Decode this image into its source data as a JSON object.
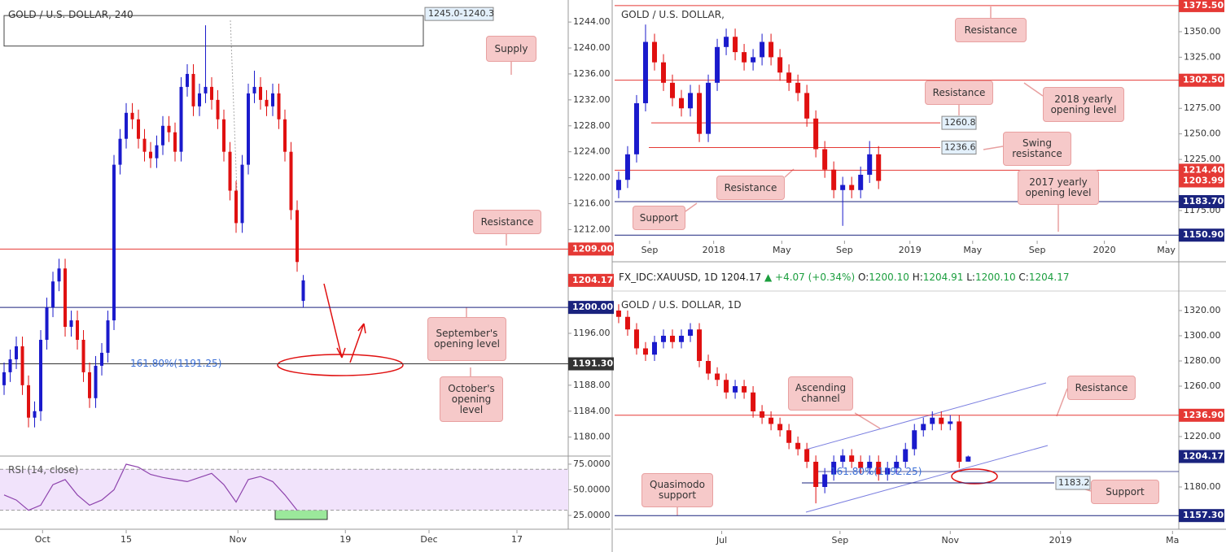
{
  "panels": [
    {
      "type": "candlestick",
      "title": "GOLD / U.S. DOLLAR, 240",
      "up_color": "#1a1acc",
      "down_color": "#e01010",
      "xlim": [
        -0.67,
        92.4
      ],
      "xticks": [
        {
          "value": 6.3,
          "label": "Oct"
        },
        {
          "value": 20,
          "label": "15"
        },
        {
          "value": 38.3,
          "label": "Nov"
        },
        {
          "value": 55.9,
          "label": "19"
        },
        {
          "value": 69.6,
          "label": "Dec"
        },
        {
          "value": 84,
          "label": "17"
        }
      ],
      "ylim": [
        1177.2,
        1247.4
      ],
      "yticks": [
        {
          "value": 1244,
          "label": "1244.00"
        },
        {
          "value": 1240,
          "label": "1240.00"
        },
        {
          "value": 1236,
          "label": "1236.00"
        },
        {
          "value": 1232,
          "label": "1232.00"
        },
        {
          "value": 1228,
          "label": "1228.00"
        },
        {
          "value": 1224,
          "label": "1224.00"
        },
        {
          "value": 1220,
          "label": "1220.00"
        },
        {
          "value": 1216,
          "label": "1216.00"
        },
        {
          "value": 1212,
          "label": "1212.00"
        },
        {
          "value": 1196,
          "label": "1196.00"
        },
        {
          "value": 1188,
          "label": "1188.00"
        },
        {
          "value": 1184,
          "label": "1184.00"
        },
        {
          "value": 1180,
          "label": "1180.00"
        }
      ],
      "candles": [
        [
          1188,
          1191.5,
          1186.5,
          1190
        ],
        [
          1190,
          1193.5,
          1188.5,
          1192
        ],
        [
          1192,
          1195.5,
          1190.5,
          1194
        ],
        [
          1194,
          1195.5,
          1186.5,
          1188
        ],
        [
          1188,
          1189.5,
          1181.5,
          1183
        ],
        [
          1183,
          1185.5,
          1181.5,
          1184
        ],
        [
          1184,
          1196.5,
          1182.5,
          1195
        ],
        [
          1195,
          1201.5,
          1193.5,
          1200
        ],
        [
          1200,
          1205.5,
          1198.5,
          1204
        ],
        [
          1204,
          1207.5,
          1202.5,
          1206
        ],
        [
          1206,
          1207.5,
          1195.5,
          1197
        ],
        [
          1197,
          1199.5,
          1195.5,
          1198
        ],
        [
          1198,
          1199.5,
          1193.5,
          1195
        ],
        [
          1195,
          1196.5,
          1188.5,
          1190
        ],
        [
          1190,
          1191.5,
          1184.5,
          1186
        ],
        [
          1186,
          1192.5,
          1184.5,
          1191
        ],
        [
          1191,
          1194.5,
          1189.5,
          1193
        ],
        [
          1193,
          1199.5,
          1191.5,
          1198
        ],
        [
          1198,
          1223.5,
          1196.5,
          1222
        ],
        [
          1222,
          1227.5,
          1220.5,
          1226
        ],
        [
          1226,
          1231.5,
          1224.5,
          1230
        ],
        [
          1230,
          1231.5,
          1227.5,
          1229
        ],
        [
          1229,
          1230.5,
          1224.5,
          1226
        ],
        [
          1226,
          1227.5,
          1222.5,
          1224
        ],
        [
          1224,
          1225.5,
          1221.5,
          1223
        ],
        [
          1223,
          1226.5,
          1221.5,
          1225
        ],
        [
          1225,
          1229.5,
          1223.5,
          1228
        ],
        [
          1228,
          1229.5,
          1225.5,
          1227
        ],
        [
          1227,
          1228.5,
          1222.5,
          1224
        ],
        [
          1224,
          1235.5,
          1222.5,
          1234
        ],
        [
          1234,
          1237.5,
          1232.5,
          1236
        ],
        [
          1236,
          1237.5,
          1229.5,
          1231
        ],
        [
          1231,
          1234.5,
          1229.5,
          1233
        ],
        [
          1233,
          1243.5,
          1231.5,
          1234
        ],
        [
          1234,
          1235.5,
          1230.5,
          1232
        ],
        [
          1232,
          1233.5,
          1227.5,
          1229
        ],
        [
          1229,
          1230.5,
          1222.5,
          1224
        ],
        [
          1224,
          1225.5,
          1216.5,
          1218
        ],
        [
          1218,
          1219.5,
          1211.5,
          1213
        ],
        [
          1213,
          1223.5,
          1211.5,
          1222
        ],
        [
          1222,
          1234.5,
          1220.5,
          1233
        ],
        [
          1233,
          1236.5,
          1231.5,
          1234
        ],
        [
          1234,
          1235.5,
          1230.5,
          1232
        ],
        [
          1232,
          1233.5,
          1229.5,
          1231
        ],
        [
          1231,
          1234.5,
          1229.5,
          1233
        ],
        [
          1233,
          1234.5,
          1227.5,
          1229
        ],
        [
          1229,
          1230.5,
          1222.5,
          1224
        ],
        [
          1224,
          1225.5,
          1213.5,
          1215
        ],
        [
          1215,
          1216.5,
          1205.5,
          1207
        ],
        [
          1201,
          1205,
          1200,
          1204.17
        ]
      ],
      "levels": [
        {
          "value": 1209,
          "label": "1209.00",
          "color": "#e53935",
          "line": true
        },
        {
          "value": 1204.17,
          "label": "1204.17",
          "color": "#e53935",
          "line": false
        },
        {
          "value": 1200,
          "label": "1200.00",
          "color": "#1a237e",
          "line": true
        },
        {
          "value": 1191.3,
          "label": "1191.30",
          "color": "#333333",
          "line": true
        }
      ],
      "zone": {
        "high": 1245.0,
        "low": 1240.3,
        "label": "1245.0-1240.3"
      },
      "annotations": [
        "Supply",
        "Resistance",
        "September's opening level",
        "October's opening level",
        "161.80%(1191.25)"
      ],
      "rsi": {
        "label": "RSI (14, close)",
        "color": "#8e44ad",
        "band": [
          30,
          70
        ],
        "ylim": [
          12.3,
          82.1
        ],
        "yticks": [
          {
            "value": 75,
            "label": "75.0000"
          },
          {
            "value": 50,
            "label": "50.0000"
          },
          {
            "value": 25,
            "label": "25.0000"
          }
        ],
        "values": [
          45,
          40,
          30,
          35,
          55,
          60,
          45,
          35,
          40,
          50,
          75,
          72,
          65,
          62,
          60,
          58,
          62,
          66,
          55,
          38,
          60,
          63,
          58,
          45,
          30
        ]
      }
    },
    {
      "type": "candlestick",
      "title": "GOLD / U.S. DOLLAR,",
      "up_color": "#1a1acc",
      "down_color": "#e01010",
      "xlim": [
        -0.45,
        62.5
      ],
      "xticks": [
        {
          "value": 3.45,
          "label": "Sep"
        },
        {
          "value": 10.6,
          "label": "2018"
        },
        {
          "value": 18.2,
          "label": "May"
        },
        {
          "value": 25.2,
          "label": "Sep"
        },
        {
          "value": 32.5,
          "label": "2019"
        },
        {
          "value": 39.5,
          "label": "May"
        },
        {
          "value": 46.7,
          "label": "Sep"
        },
        {
          "value": 54.2,
          "label": "2020"
        },
        {
          "value": 61.1,
          "label": "May"
        }
      ],
      "ylim": [
        1150.3,
        1381
      ],
      "yticks": [
        {
          "value": 1350,
          "label": "1350.00"
        },
        {
          "value": 1325,
          "label": "1325.00"
        },
        {
          "value": 1275,
          "label": "1275.00"
        },
        {
          "value": 1250,
          "label": "1250.00"
        },
        {
          "value": 1225,
          "label": "1225.00"
        },
        {
          "value": 1175,
          "label": "1175.00"
        }
      ],
      "candles": [
        [
          1195,
          1213,
          1187,
          1205
        ],
        [
          1205,
          1238,
          1197,
          1230
        ],
        [
          1230,
          1288,
          1222,
          1280
        ],
        [
          1280,
          1357,
          1272,
          1340
        ],
        [
          1340,
          1348,
          1312,
          1320
        ],
        [
          1320,
          1328,
          1292,
          1300
        ],
        [
          1300,
          1308,
          1277,
          1285
        ],
        [
          1285,
          1293,
          1267,
          1275
        ],
        [
          1275,
          1298,
          1267,
          1290
        ],
        [
          1290,
          1298,
          1242,
          1250
        ],
        [
          1250,
          1308,
          1242,
          1300
        ],
        [
          1300,
          1343,
          1292,
          1335
        ],
        [
          1335,
          1353,
          1327,
          1345
        ],
        [
          1345,
          1353,
          1322,
          1330
        ],
        [
          1330,
          1338,
          1312,
          1320
        ],
        [
          1320,
          1333,
          1312,
          1325
        ],
        [
          1325,
          1348,
          1317,
          1340
        ],
        [
          1340,
          1348,
          1317,
          1325
        ],
        [
          1325,
          1333,
          1302,
          1310
        ],
        [
          1310,
          1318,
          1292,
          1300
        ],
        [
          1300,
          1308,
          1282,
          1290
        ],
        [
          1290,
          1298,
          1257,
          1265
        ],
        [
          1265,
          1273,
          1227,
          1235
        ],
        [
          1235,
          1243,
          1207,
          1215
        ],
        [
          1215,
          1223,
          1187,
          1195
        ],
        [
          1195,
          1208,
          1160,
          1200
        ],
        [
          1200,
          1208,
          1187,
          1195
        ],
        [
          1195,
          1218,
          1187,
          1210
        ],
        [
          1210,
          1243,
          1202,
          1230
        ],
        [
          1230,
          1238,
          1196,
          1204
        ]
      ],
      "levels": [
        {
          "value": 1375.5,
          "label": "1375.50",
          "color": "#e53935",
          "line": true
        },
        {
          "value": 1302.5,
          "label": "1302.50",
          "color": "#e53935",
          "line": true
        },
        {
          "value": 1214.4,
          "label": "1214.40",
          "color": "#e53935",
          "line": true
        },
        {
          "value": 1203.99,
          "label": "1203.99",
          "color": "#e53935",
          "line": false
        },
        {
          "value": 1183.7,
          "label": "1183.70",
          "color": "#1a237e",
          "line": true
        },
        {
          "value": 1150.9,
          "label": "1150.90",
          "color": "#1a237e",
          "line": true
        }
      ],
      "short_levels": [
        {
          "value": 1260.8,
          "label": "1260.8",
          "color": "#e53935"
        },
        {
          "value": 1236.6,
          "label": "1236.6",
          "color": "#e53935"
        }
      ],
      "annotations": [
        "Resistance",
        "Resistance",
        "2018 yearly opening level",
        "Swing resistance",
        "Resistance",
        "2017 yearly opening level",
        "Support"
      ]
    },
    {
      "type": "candlestick",
      "title": "GOLD / U.S. DOLLAR, 1D",
      "up_color": "#1a1acc",
      "down_color": "#e01010",
      "xlim": [
        -0.45,
        62.5
      ],
      "xticks": [
        {
          "value": 11.5,
          "label": "Jul"
        },
        {
          "value": 24.7,
          "label": "Sep"
        },
        {
          "value": 37,
          "label": "Nov"
        },
        {
          "value": 49.3,
          "label": "2019"
        },
        {
          "value": 61.8,
          "label": "Ma"
        }
      ],
      "ylim": [
        1147.1,
        1332.9
      ],
      "yticks": [
        {
          "value": 1320,
          "label": "1320.00"
        },
        {
          "value": 1300,
          "label": "1300.00"
        },
        {
          "value": 1280,
          "label": "1280.00"
        },
        {
          "value": 1260,
          "label": "1260.00"
        },
        {
          "value": 1220,
          "label": "1220.00"
        },
        {
          "value": 1180,
          "label": "1180.00"
        }
      ],
      "candles": [
        [
          1320,
          1325,
          1310,
          1315
        ],
        [
          1315,
          1320,
          1300,
          1305
        ],
        [
          1305,
          1310,
          1285,
          1290
        ],
        [
          1290,
          1295,
          1280,
          1285
        ],
        [
          1285,
          1300,
          1280,
          1295
        ],
        [
          1295,
          1305,
          1290,
          1300
        ],
        [
          1300,
          1305,
          1290,
          1295
        ],
        [
          1295,
          1305,
          1290,
          1300
        ],
        [
          1300,
          1310,
          1295,
          1305
        ],
        [
          1305,
          1310,
          1275,
          1280
        ],
        [
          1280,
          1285,
          1265,
          1270
        ],
        [
          1270,
          1275,
          1260,
          1265
        ],
        [
          1265,
          1270,
          1250,
          1255
        ],
        [
          1255,
          1265,
          1250,
          1260
        ],
        [
          1260,
          1265,
          1250,
          1255
        ],
        [
          1255,
          1260,
          1235,
          1240
        ],
        [
          1240,
          1245,
          1230,
          1235
        ],
        [
          1235,
          1240,
          1225,
          1230
        ],
        [
          1230,
          1235,
          1220,
          1225
        ],
        [
          1225,
          1230,
          1210,
          1215
        ],
        [
          1215,
          1220,
          1205,
          1210
        ],
        [
          1210,
          1215,
          1195,
          1200
        ],
        [
          1200,
          1205,
          1167,
          1180
        ],
        [
          1180,
          1195,
          1175,
          1190
        ],
        [
          1190,
          1205,
          1185,
          1200
        ],
        [
          1200,
          1210,
          1195,
          1205
        ],
        [
          1205,
          1210,
          1195,
          1200
        ],
        [
          1200,
          1205,
          1190,
          1195
        ],
        [
          1195,
          1205,
          1190,
          1200
        ],
        [
          1200,
          1205,
          1185,
          1190
        ],
        [
          1190,
          1200,
          1185,
          1195
        ],
        [
          1195,
          1205,
          1190,
          1200
        ],
        [
          1200,
          1215,
          1195,
          1210
        ],
        [
          1210,
          1230,
          1205,
          1225
        ],
        [
          1225,
          1235,
          1220,
          1230
        ],
        [
          1230,
          1240,
          1225,
          1235
        ],
        [
          1235,
          1240,
          1225,
          1230
        ],
        [
          1230,
          1237,
          1225,
          1232
        ],
        [
          1232,
          1237,
          1195,
          1200
        ],
        [
          1200.1,
          1204.91,
          1200.1,
          1204.17
        ]
      ],
      "levels": [
        {
          "value": 1236.9,
          "label": "1236.90",
          "color": "#e53935",
          "line": true
        },
        {
          "value": 1204.17,
          "label": "1204.17",
          "color": "#1a237e",
          "line": false
        },
        {
          "value": 1157.3,
          "label": "1157.30",
          "color": "#1a237e",
          "line": true
        }
      ],
      "short_levels": [
        {
          "value": 1183.2,
          "label": "1183.2",
          "color": "#1a237e"
        }
      ],
      "annotations": [
        "Ascending channel",
        "Resistance",
        "Support",
        "Quasimodo support",
        "161.80%(1192.25)"
      ]
    }
  ],
  "quote": {
    "symbol": "FX_IDC:XAUUSD, 1D",
    "last": "1204.17",
    "change": "▲ +4.07 (+0.34%)",
    "ohlc": [
      {
        "label": "O:",
        "value": "1200.10"
      },
      {
        "label": "H:",
        "value": "1204.91"
      },
      {
        "label": "L:",
        "value": "1200.10"
      },
      {
        "label": "C:",
        "value": "1204.17"
      }
    ]
  }
}
